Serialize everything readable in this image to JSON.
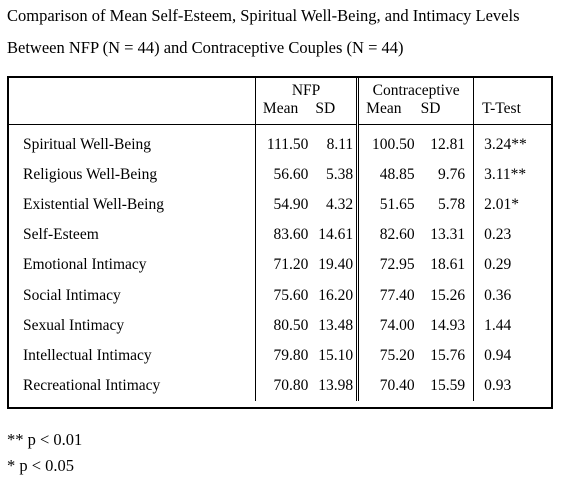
{
  "title": {
    "line1": "Comparison of Mean Self-Esteem, Spiritual Well-Being, and Intimacy Levels",
    "line2": "Between NFP (N = 44) and Contraceptive Couples (N = 44)"
  },
  "table": {
    "groups": {
      "nfp": "NFP",
      "contraceptive": "Contraceptive",
      "ttest": "T-Test"
    },
    "subheaders": {
      "mean": "Mean",
      "sd": "SD"
    },
    "rows": [
      {
        "label": "Spiritual Well-Being",
        "nfp_mean": "111.50",
        "nfp_sd": "8.11",
        "c_mean": "100.50",
        "c_sd": "12.81",
        "t": "3.24**"
      },
      {
        "label": "Religious Well-Being",
        "nfp_mean": "56.60",
        "nfp_sd": "5.38",
        "c_mean": "48.85",
        "c_sd": "9.76",
        "t": "3.11**"
      },
      {
        "label": "Existential Well-Being",
        "nfp_mean": "54.90",
        "nfp_sd": "4.32",
        "c_mean": "51.65",
        "c_sd": "5.78",
        "t": "2.01*"
      },
      {
        "label": "Self-Esteem",
        "nfp_mean": "83.60",
        "nfp_sd": "14.61",
        "c_mean": "82.60",
        "c_sd": "13.31",
        "t": "0.23"
      },
      {
        "label": "Emotional Intimacy",
        "nfp_mean": "71.20",
        "nfp_sd": "19.40",
        "c_mean": "72.95",
        "c_sd": "18.61",
        "t": "0.29"
      },
      {
        "label": "Social Intimacy",
        "nfp_mean": "75.60",
        "nfp_sd": "16.20",
        "c_mean": "77.40",
        "c_sd": "15.26",
        "t": "0.36"
      },
      {
        "label": "Sexual Intimacy",
        "nfp_mean": "80.50",
        "nfp_sd": "13.48",
        "c_mean": "74.00",
        "c_sd": "14.93",
        "t": "1.44"
      },
      {
        "label": "Intellectual Intimacy",
        "nfp_mean": "79.80",
        "nfp_sd": "15.10",
        "c_mean": "75.20",
        "c_sd": "15.76",
        "t": "0.94"
      },
      {
        "label": "Recreational Intimacy",
        "nfp_mean": "70.80",
        "nfp_sd": "13.98",
        "c_mean": "70.40",
        "c_sd": "15.59",
        "t": "0.93"
      }
    ]
  },
  "notes": {
    "line1": "** p < 0.01",
    "line2": "* p < 0.05"
  }
}
